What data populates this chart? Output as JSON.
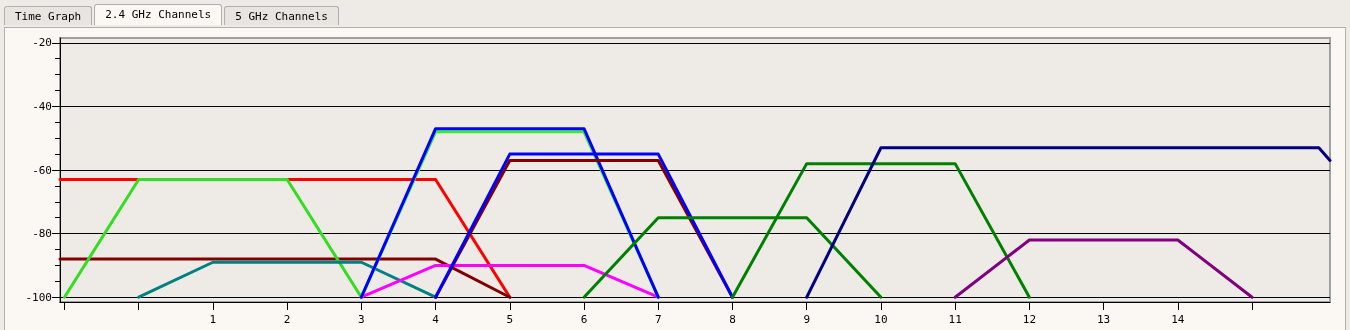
{
  "chart_data": {
    "type": "line",
    "annotations": [
      "Time Graph",
      "2.4 GHz Channels",
      "5 GHz Channels"
    ],
    "xlim": [
      -1.06,
      16.05
    ],
    "xticks": [
      {
        "value": -1,
        "label": null
      },
      {
        "value": 0,
        "label": null
      },
      1,
      2,
      3,
      4,
      5,
      6,
      7,
      8,
      9,
      10,
      11,
      12,
      13,
      14,
      {
        "value": 15,
        "label": null
      }
    ],
    "ylim": [
      -101.5,
      -18.5
    ],
    "yticks": [
      -100,
      {
        "value": -95,
        "label": null
      },
      {
        "value": -90,
        "label": null
      },
      {
        "value": -85,
        "label": null
      },
      -80,
      {
        "value": -75,
        "label": null
      },
      {
        "value": -70,
        "label": null
      },
      {
        "value": -65,
        "label": null
      },
      -60,
      {
        "value": -55,
        "label": null
      },
      {
        "value": -50,
        "label": null
      },
      {
        "value": -45,
        "label": null
      },
      -40,
      {
        "value": -35,
        "label": null
      },
      {
        "value": -30,
        "label": null
      },
      {
        "value": -25,
        "label": null
      },
      -20
    ],
    "grid": "y",
    "series": [
      {
        "color": "#ff0000",
        "x": [
          -1.06,
          4,
          5
        ],
        "values": [
          -63,
          -63,
          -100
        ]
      },
      {
        "color": "#800000",
        "x": [
          -1.06,
          4,
          5
        ],
        "values": [
          -88,
          -88,
          -100
        ]
      },
      {
        "color": "#33dd22",
        "x": [
          -1,
          0,
          2,
          3
        ],
        "values": [
          -100,
          -63,
          -63,
          -100
        ]
      },
      {
        "color": "#008080",
        "x": [
          0,
          1,
          3,
          4
        ],
        "values": [
          -100,
          -89,
          -89,
          -100
        ]
      },
      {
        "color": "#ff00ff",
        "x": [
          3,
          4,
          6,
          7
        ],
        "values": [
          -100,
          -90,
          -90,
          -100
        ]
      },
      {
        "color": "#33ee33",
        "x": [
          3,
          4,
          6,
          7
        ],
        "values": [
          -100,
          -48,
          -48,
          -100
        ]
      },
      {
        "color": "#0000ff",
        "x": [
          3,
          4,
          6,
          7
        ],
        "values": [
          -100,
          -47,
          -47,
          -100
        ]
      },
      {
        "color": "#800000",
        "x": [
          4,
          5,
          7,
          8
        ],
        "values": [
          -100,
          -57,
          -57,
          -100
        ]
      },
      {
        "color": "#0000ff",
        "x": [
          4,
          5,
          7,
          8
        ],
        "values": [
          -100,
          -55,
          -55,
          -100
        ]
      },
      {
        "color": "#008000",
        "x": [
          6,
          7,
          9,
          10
        ],
        "values": [
          -100,
          -75,
          -75,
          -100
        ]
      },
      {
        "color": "#008000",
        "x": [
          8,
          9,
          11,
          12
        ],
        "values": [
          -100,
          -58,
          -58,
          -100
        ]
      },
      {
        "color": "#000080",
        "x": [
          9,
          10,
          15.9,
          16.05
        ],
        "values": [
          -100,
          -53,
          -53,
          -57
        ]
      },
      {
        "color": "#800080",
        "x": [
          11,
          12,
          14,
          15
        ],
        "values": [
          -100,
          -82,
          -82,
          -100
        ]
      }
    ]
  }
}
